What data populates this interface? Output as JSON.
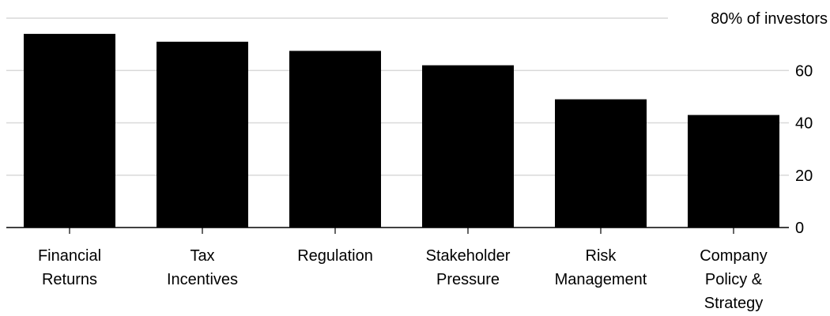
{
  "chart_data": {
    "type": "bar",
    "categories": [
      [
        "Financial",
        "Returns"
      ],
      [
        "Tax",
        "Incentives"
      ],
      [
        "Regulation"
      ],
      [
        "Stakeholder",
        "Pressure"
      ],
      [
        "Risk",
        "Management"
      ],
      [
        "Company",
        "Policy &",
        "Strategy"
      ]
    ],
    "values": [
      74,
      71,
      67.5,
      62,
      49,
      43
    ],
    "ylim": [
      0,
      80
    ],
    "yticks": [
      0,
      20,
      40,
      60,
      80
    ],
    "ytick_labels": [
      "0",
      "20",
      "40",
      "60",
      "80% of investors"
    ],
    "grid": true,
    "y_axis_position": "right",
    "bar_color": "#000000",
    "grid_color": "#d9d9d9"
  }
}
